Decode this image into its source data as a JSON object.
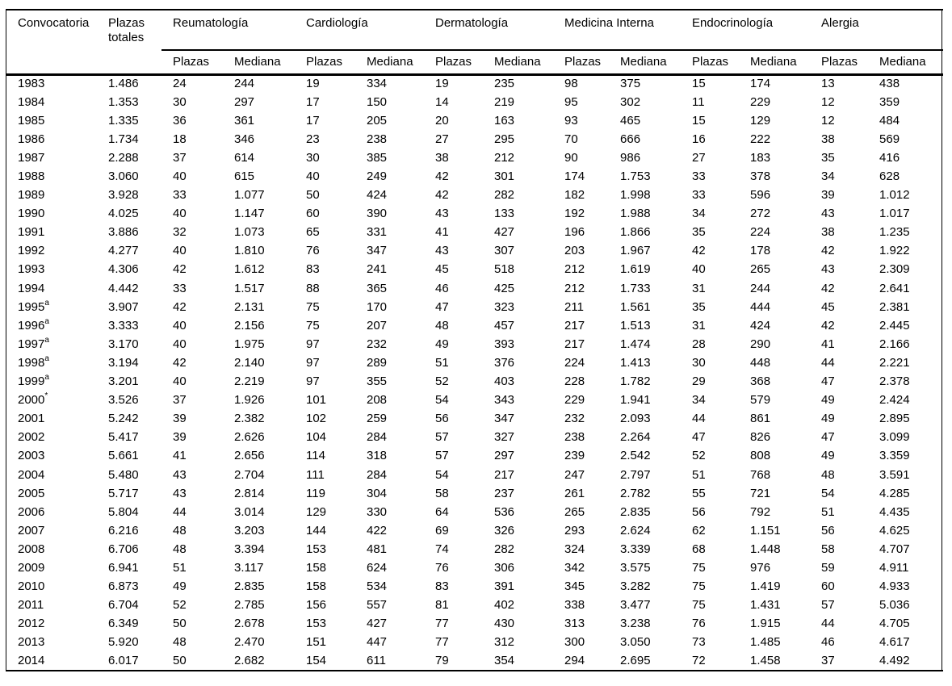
{
  "figure": {
    "type": "table",
    "colors": {
      "text": "#000000",
      "rule": "#000000",
      "background": "#ffffff"
    },
    "columns": {
      "convocatoria": "Convocatoria",
      "plazas_totales": "Plazas totales",
      "subheaders": {
        "plazas": "Plazas",
        "mediana": "Mediana"
      },
      "groups": [
        "Reumatología",
        "Cardiología",
        "Dermatología",
        "Medicina Interna",
        "Endocrinología",
        "Alergia"
      ]
    },
    "rows": [
      {
        "year": "1983",
        "sup": "",
        "plazas_totales": "1.486",
        "cells": [
          "24",
          "244",
          "19",
          "334",
          "19",
          "235",
          "98",
          "375",
          "15",
          "174",
          "13",
          "438"
        ]
      },
      {
        "year": "1984",
        "sup": "",
        "plazas_totales": "1.353",
        "cells": [
          "30",
          "297",
          "17",
          "150",
          "14",
          "219",
          "95",
          "302",
          "11",
          "229",
          "12",
          "359"
        ]
      },
      {
        "year": "1985",
        "sup": "",
        "plazas_totales": "1.335",
        "cells": [
          "36",
          "361",
          "17",
          "205",
          "20",
          "163",
          "93",
          "465",
          "15",
          "129",
          "12",
          "484"
        ]
      },
      {
        "year": "1986",
        "sup": "",
        "plazas_totales": "1.734",
        "cells": [
          "18",
          "346",
          "23",
          "238",
          "27",
          "295",
          "70",
          "666",
          "16",
          "222",
          "38",
          "569"
        ]
      },
      {
        "year": "1987",
        "sup": "",
        "plazas_totales": "2.288",
        "cells": [
          "37",
          "614",
          "30",
          "385",
          "38",
          "212",
          "90",
          "986",
          "27",
          "183",
          "35",
          "416"
        ]
      },
      {
        "year": "1988",
        "sup": "",
        "plazas_totales": "3.060",
        "cells": [
          "40",
          "615",
          "40",
          "249",
          "42",
          "301",
          "174",
          "1.753",
          "33",
          "378",
          "34",
          "628"
        ]
      },
      {
        "year": "1989",
        "sup": "",
        "plazas_totales": "3.928",
        "cells": [
          "33",
          "1.077",
          "50",
          "424",
          "42",
          "282",
          "182",
          "1.998",
          "33",
          "596",
          "39",
          "1.012"
        ]
      },
      {
        "year": "1990",
        "sup": "",
        "plazas_totales": "4.025",
        "cells": [
          "40",
          "1.147",
          "60",
          "390",
          "43",
          "133",
          "192",
          "1.988",
          "34",
          "272",
          "43",
          "1.017"
        ]
      },
      {
        "year": "1991",
        "sup": "",
        "plazas_totales": "3.886",
        "cells": [
          "32",
          "1.073",
          "65",
          "331",
          "41",
          "427",
          "196",
          "1.866",
          "35",
          "224",
          "38",
          "1.235"
        ]
      },
      {
        "year": "1992",
        "sup": "",
        "plazas_totales": "4.277",
        "cells": [
          "40",
          "1.810",
          "76",
          "347",
          "43",
          "307",
          "203",
          "1.967",
          "42",
          "178",
          "42",
          "1.922"
        ]
      },
      {
        "year": "1993",
        "sup": "",
        "plazas_totales": "4.306",
        "cells": [
          "42",
          "1.612",
          "83",
          "241",
          "45",
          "518",
          "212",
          "1.619",
          "40",
          "265",
          "43",
          "2.309"
        ]
      },
      {
        "year": "1994",
        "sup": "",
        "plazas_totales": "4.442",
        "cells": [
          "33",
          "1.517",
          "88",
          "365",
          "46",
          "425",
          "212",
          "1.733",
          "31",
          "244",
          "42",
          "2.641"
        ]
      },
      {
        "year": "1995",
        "sup": "a",
        "plazas_totales": "3.907",
        "cells": [
          "42",
          "2.131",
          "75",
          "170",
          "47",
          "323",
          "211",
          "1.561",
          "35",
          "444",
          "45",
          "2.381"
        ]
      },
      {
        "year": "1996",
        "sup": "a",
        "plazas_totales": "3.333",
        "cells": [
          "40",
          "2.156",
          "75",
          "207",
          "48",
          "457",
          "217",
          "1.513",
          "31",
          "424",
          "42",
          "2.445"
        ]
      },
      {
        "year": "1997",
        "sup": "a",
        "plazas_totales": "3.170",
        "cells": [
          "40",
          "1.975",
          "97",
          "232",
          "49",
          "393",
          "217",
          "1.474",
          "28",
          "290",
          "41",
          "2.166"
        ]
      },
      {
        "year": "1998",
        "sup": "a",
        "plazas_totales": "3.194",
        "cells": [
          "42",
          "2.140",
          "97",
          "289",
          "51",
          "376",
          "224",
          "1.413",
          "30",
          "448",
          "44",
          "2.221"
        ]
      },
      {
        "year": "1999",
        "sup": "a",
        "plazas_totales": "3.201",
        "cells": [
          "40",
          "2.219",
          "97",
          "355",
          "52",
          "403",
          "228",
          "1.782",
          "29",
          "368",
          "47",
          "2.378"
        ]
      },
      {
        "year": "2000",
        "sup": "*",
        "plazas_totales": "3.526",
        "cells": [
          "37",
          "1.926",
          "101",
          "208",
          "54",
          "343",
          "229",
          "1.941",
          "34",
          "579",
          "49",
          "2.424"
        ]
      },
      {
        "year": "2001",
        "sup": "",
        "plazas_totales": "5.242",
        "cells": [
          "39",
          "2.382",
          "102",
          "259",
          "56",
          "347",
          "232",
          "2.093",
          "44",
          "861",
          "49",
          "2.895"
        ]
      },
      {
        "year": "2002",
        "sup": "",
        "plazas_totales": "5.417",
        "cells": [
          "39",
          "2.626",
          "104",
          "284",
          "57",
          "327",
          "238",
          "2.264",
          "47",
          "826",
          "47",
          "3.099"
        ]
      },
      {
        "year": "2003",
        "sup": "",
        "plazas_totales": "5.661",
        "cells": [
          "41",
          "2.656",
          "114",
          "318",
          "57",
          "297",
          "239",
          "2.542",
          "52",
          "808",
          "49",
          "3.359"
        ]
      },
      {
        "year": "2004",
        "sup": "",
        "plazas_totales": "5.480",
        "cells": [
          "43",
          "2.704",
          "111",
          "284",
          "54",
          "217",
          "247",
          "2.797",
          "51",
          "768",
          "48",
          "3.591"
        ]
      },
      {
        "year": "2005",
        "sup": "",
        "plazas_totales": "5.717",
        "cells": [
          "43",
          "2.814",
          "119",
          "304",
          "58",
          "237",
          "261",
          "2.782",
          "55",
          "721",
          "54",
          "4.285"
        ]
      },
      {
        "year": "2006",
        "sup": "",
        "plazas_totales": "5.804",
        "cells": [
          "44",
          "3.014",
          "129",
          "330",
          "64",
          "536",
          "265",
          "2.835",
          "56",
          "792",
          "51",
          "4.435"
        ]
      },
      {
        "year": "2007",
        "sup": "",
        "plazas_totales": "6.216",
        "cells": [
          "48",
          "3.203",
          "144",
          "422",
          "69",
          "326",
          "293",
          "2.624",
          "62",
          "1.151",
          "56",
          "4.625"
        ]
      },
      {
        "year": "2008",
        "sup": "",
        "plazas_totales": "6.706",
        "cells": [
          "48",
          "3.394",
          "153",
          "481",
          "74",
          "282",
          "324",
          "3.339",
          "68",
          "1.448",
          "58",
          "4.707"
        ]
      },
      {
        "year": "2009",
        "sup": "",
        "plazas_totales": "6.941",
        "cells": [
          "51",
          "3.117",
          "158",
          "624",
          "76",
          "306",
          "342",
          "3.575",
          "75",
          "976",
          "59",
          "4.911"
        ]
      },
      {
        "year": "2010",
        "sup": "",
        "plazas_totales": "6.873",
        "cells": [
          "49",
          "2.835",
          "158",
          "534",
          "83",
          "391",
          "345",
          "3.282",
          "75",
          "1.419",
          "60",
          "4.933"
        ]
      },
      {
        "year": "2011",
        "sup": "",
        "plazas_totales": "6.704",
        "cells": [
          "52",
          "2.785",
          "156",
          "557",
          "81",
          "402",
          "338",
          "3.477",
          "75",
          "1.431",
          "57",
          "5.036"
        ]
      },
      {
        "year": "2012",
        "sup": "",
        "plazas_totales": "6.349",
        "cells": [
          "50",
          "2.678",
          "153",
          "427",
          "77",
          "430",
          "313",
          "3.238",
          "76",
          "1.915",
          "44",
          "4.705"
        ]
      },
      {
        "year": "2013",
        "sup": "",
        "plazas_totales": "5.920",
        "cells": [
          "48",
          "2.470",
          "151",
          "447",
          "77",
          "312",
          "300",
          "3.050",
          "73",
          "1.485",
          "46",
          "4.617"
        ]
      },
      {
        "year": "2014",
        "sup": "",
        "plazas_totales": "6.017",
        "cells": [
          "50",
          "2.682",
          "154",
          "611",
          "79",
          "354",
          "294",
          "2.695",
          "72",
          "1.458",
          "37",
          "4.492"
        ]
      }
    ]
  }
}
